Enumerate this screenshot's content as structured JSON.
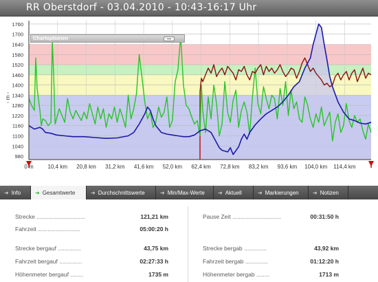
{
  "window": {
    "title": "RR Oberstdorf - 03.04.2010 - 10:43-16:17 Uhr"
  },
  "chart": {
    "options_label": "Chartoptionen",
    "y_axis_label": "- m -",
    "y_ticks": [
      "980",
      "1040",
      "1100",
      "1160",
      "1220",
      "1280",
      "1340",
      "1400",
      "1460",
      "1520",
      "1580",
      "1640",
      "1700",
      "1760"
    ],
    "x_ticks": [
      "0 m",
      "10,4 km",
      "20,8 km",
      "31,2 km",
      "41,6 km",
      "52,0 km",
      "62,4 km",
      "72,8 km",
      "83,2 km",
      "93,6 km",
      "104,0 km",
      "114,4 km"
    ],
    "colors": {
      "elevation_line": "#1a1aa8",
      "elevation_fill": "#c8c8ee",
      "green_series": "#28c428",
      "red_series": "#8a1010",
      "band_red": "#f8c8c8",
      "band_green": "#c8f0c0",
      "band_yellow": "#f8f8c0",
      "band_blue": "#c8ccf0",
      "tabbar": "#555555"
    }
  },
  "chart_data": {
    "type": "line",
    "ylabel": "- m -",
    "ylim": [
      960,
      1780
    ],
    "x_unit": "km",
    "xlim": [
      0,
      124
    ],
    "grid": true,
    "series": [
      {
        "color": "#1a1aa8",
        "fill": "#c8c8ee",
        "x": [
          0,
          1,
          2,
          3,
          4,
          5,
          6,
          8,
          10,
          13,
          16,
          20,
          24,
          28,
          32,
          36,
          38,
          40,
          42,
          43,
          44,
          45,
          46,
          48,
          50,
          52,
          54,
          56,
          58,
          60,
          62,
          64,
          66,
          67,
          68,
          69,
          70,
          72,
          73,
          74,
          76,
          77,
          78,
          79,
          80,
          82,
          84,
          86,
          88,
          90,
          92,
          94,
          96,
          98,
          99,
          100,
          102,
          103,
          104,
          105,
          106,
          107,
          108,
          109,
          110,
          112,
          114,
          116,
          118,
          120,
          122,
          124
        ],
        "y": [
          1160,
          1150,
          1140,
          1145,
          1150,
          1140,
          1120,
          1115,
          1105,
          1100,
          1095,
          1095,
          1090,
          1085,
          1088,
          1100,
          1120,
          1170,
          1230,
          1270,
          1250,
          1200,
          1160,
          1120,
          1110,
          1105,
          1100,
          1095,
          1095,
          1105,
          1130,
          1140,
          1120,
          1090,
          1060,
          1030,
          1015,
          1005,
          1030,
          990,
          1035,
          1080,
          1110,
          1080,
          1120,
          1165,
          1200,
          1230,
          1250,
          1270,
          1300,
          1340,
          1390,
          1420,
          1460,
          1500,
          1560,
          1640,
          1700,
          1760,
          1740,
          1640,
          1550,
          1450,
          1390,
          1300,
          1240,
          1200,
          1190,
          1175,
          1170,
          1180
        ]
      },
      {
        "color": "#28c428",
        "x": [
          0,
          1,
          2,
          2.5,
          3,
          4,
          4.5,
          5,
          6,
          7,
          8,
          8.5,
          9,
          9.5,
          10,
          11,
          12,
          13,
          14,
          15,
          16,
          17,
          18,
          19,
          20,
          21,
          22,
          23,
          24,
          25,
          26,
          27,
          28,
          29,
          30,
          31,
          32,
          33,
          34,
          35,
          36,
          37,
          38,
          39,
          40,
          41,
          42,
          43,
          44,
          45,
          46,
          47,
          48,
          49,
          50,
          51,
          52,
          53,
          54,
          55,
          56,
          57,
          58,
          59,
          60,
          61,
          62,
          62.5,
          63,
          64,
          65,
          66,
          67,
          68,
          69,
          70,
          71,
          72,
          73,
          74,
          75,
          76,
          77,
          78,
          79,
          80,
          81,
          82,
          83,
          84,
          85,
          86,
          87,
          88,
          89,
          90,
          91,
          92,
          93,
          94,
          95,
          96,
          97,
          98,
          99,
          100,
          101,
          102,
          103,
          104,
          105,
          106,
          107,
          108,
          109,
          110,
          111,
          112,
          113,
          114,
          115,
          116,
          117,
          118,
          119,
          120,
          121,
          122,
          123,
          124
        ],
        "y": [
          1320,
          1280,
          1250,
          1560,
          1380,
          1250,
          1160,
          1200,
          1190,
          1160,
          1180,
          1660,
          1460,
          1170,
          1200,
          1260,
          1220,
          1180,
          1320,
          1240,
          1200,
          1250,
          1220,
          1190,
          1240,
          1200,
          1290,
          1230,
          1170,
          1270,
          1200,
          1260,
          1150,
          1230,
          1200,
          1270,
          1180,
          1260,
          1210,
          1150,
          1340,
          1200,
          1260,
          1350,
          1580,
          1440,
          1300,
          1200,
          1240,
          1150,
          1180,
          1270,
          1210,
          1240,
          1330,
          1150,
          1190,
          1420,
          1490,
          1690,
          1400,
          1280,
          1260,
          1210,
          1170,
          1190,
          1100,
          1400,
          1250,
          1120,
          1330,
          1200,
          1400,
          1290,
          1100,
          1170,
          1420,
          1240,
          1180,
          1310,
          1370,
          1150,
          1250,
          1300,
          1240,
          1110,
          1330,
          1500,
          1290,
          1230,
          1390,
          1320,
          1260,
          1340,
          1320,
          1200,
          1380,
          1280,
          1420,
          1220,
          1370,
          1260,
          1300,
          1200,
          1180,
          1330,
          1280,
          1200,
          1150,
          1230,
          1180,
          1270,
          1160,
          1200,
          1240,
          1070,
          1180,
          1230,
          1120,
          1160,
          1290,
          1190,
          1150,
          1220,
          1180,
          1200,
          1130,
          1080,
          1170,
          1120
        ]
      },
      {
        "color": "#8a1010",
        "x": [
          62,
          62.5,
          63,
          64,
          65,
          66,
          67,
          68,
          69,
          70,
          71,
          72,
          73,
          74,
          75,
          76,
          77,
          78,
          79,
          80,
          81,
          82,
          83,
          84,
          85,
          86,
          87,
          88,
          89,
          90,
          91,
          92,
          93,
          94,
          95,
          96,
          97,
          98,
          99,
          100,
          101,
          102,
          103,
          104,
          105,
          106,
          107,
          108,
          109,
          110,
          111,
          112,
          113,
          114,
          115,
          116,
          117,
          118,
          119,
          120,
          121,
          122,
          123,
          124
        ],
        "y": [
          1360,
          1440,
          1420,
          1460,
          1500,
          1470,
          1520,
          1450,
          1480,
          1500,
          1460,
          1510,
          1490,
          1470,
          1430,
          1490,
          1480,
          1510,
          1460,
          1430,
          1480,
          1470,
          1500,
          1520,
          1460,
          1510,
          1480,
          1500,
          1470,
          1490,
          1520,
          1480,
          1450,
          1470,
          1500,
          1490,
          1440,
          1480,
          1530,
          1560,
          1520,
          1480,
          1500,
          1470,
          1450,
          1430,
          1400,
          1410,
          1390,
          1400,
          1450,
          1470,
          1430,
          1460,
          1480,
          1430,
          1470,
          1490,
          1420,
          1460,
          1500,
          1440,
          1470,
          1460
        ]
      }
    ]
  },
  "tabs": [
    {
      "label": "Info"
    },
    {
      "label": "Gesamtwerte"
    },
    {
      "label": "Durchschnittswerte"
    },
    {
      "label": "Min/Max-Werte"
    },
    {
      "label": "Aktuell"
    },
    {
      "label": "Markierungen"
    },
    {
      "label": "Notizen"
    }
  ],
  "stats": {
    "left": [
      {
        "label": "Strecke ..............................",
        "value": "121,21 km"
      },
      {
        "label": "Fahrzeit ..........................",
        "value": "05:00:20 h"
      },
      {
        "label": "Strecke bergauf ..............",
        "value": "43,75 km"
      },
      {
        "label": "Fahrzeit bergauf ..............",
        "value": "02:27:33 h"
      },
      {
        "label": "Höhenmeter bergauf ........",
        "value": "1735 m"
      }
    ],
    "right": [
      {
        "label": "Pause Zeit ..............................",
        "value": "00:31:50 h"
      },
      {
        "label": "Strecke bergab ..............",
        "value": "43,92 km"
      },
      {
        "label": "Fahrzeit bergab ..............",
        "value": "01:12:20 h"
      },
      {
        "label": "Höhenmeter bergab ........",
        "value": "1713 m"
      }
    ]
  }
}
